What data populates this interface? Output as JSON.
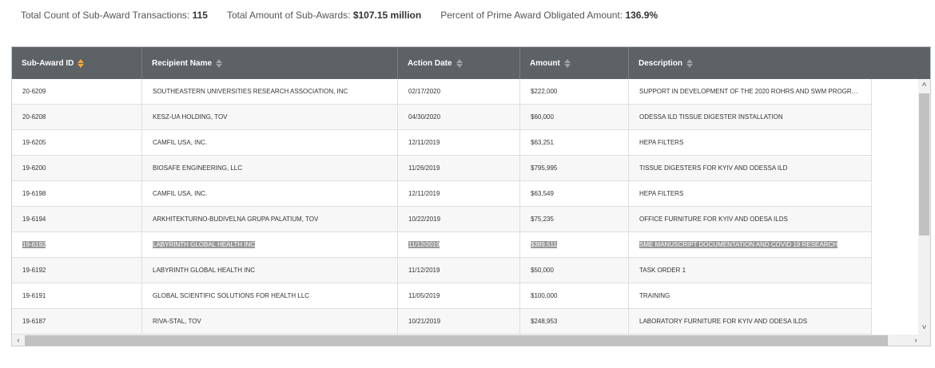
{
  "summary": {
    "count_label": "Total Count of Sub-Award Transactions:",
    "count_value": "115",
    "amount_label": "Total Amount of Sub-Awards:",
    "amount_value": "$107.15 million",
    "percent_label": "Percent of Prime Award Obligated Amount:",
    "percent_value": "136.9%"
  },
  "table": {
    "columns": [
      "Sub-Award ID",
      "Recipient Name",
      "Action Date",
      "Amount",
      "Description"
    ],
    "active_sort_column": "Sub-Award ID",
    "rows": [
      [
        "20-6209",
        "SOUTHEASTERN UNIVERSITIES RESEARCH ASSOCIATION, INC",
        "02/17/2020",
        "$222,000",
        "SUPPORT IN DEVELOPMENT OF THE 2020 ROHRS AND SWM PROGR…"
      ],
      [
        "20-6208",
        "KESZ-UA HOLDING, TOV",
        "04/30/2020",
        "$60,000",
        "ODESSA ILD TISSUE DIGESTER INSTALLATION"
      ],
      [
        "19-6205",
        "CAMFIL USA, INC.",
        "12/11/2019",
        "$63,251",
        "HEPA FILTERS"
      ],
      [
        "19-6200",
        "BIOSAFE ENGINEERING, LLC",
        "11/26/2019",
        "$795,995",
        "TISSUE DIGESTERS FOR KYIV AND ODESSA ILD"
      ],
      [
        "19-6198",
        "CAMFIL USA, INC.",
        "12/11/2019",
        "$63,549",
        "HEPA FILTERS"
      ],
      [
        "19-6194",
        "ARKHITEKTURNO-BUDIVELNA GRUPA PALATIUM, TOV",
        "10/22/2019",
        "$75,235",
        "OFFICE FURNITURE FOR KYIV AND ODESA ILDS"
      ],
      [
        "19-6192",
        "LABYRINTH GLOBAL HEALTH INC",
        "11/12/2019",
        "$389,511",
        "SME MANUSCRIPT DOCUMENTATION AND COVID 19 RESEARCH"
      ],
      [
        "19-6192",
        "LABYRINTH GLOBAL HEALTH INC",
        "11/12/2019",
        "$50,000",
        "TASK ORDER 1"
      ],
      [
        "19-6191",
        "GLOBAL SCIENTIFIC SOLUTIONS FOR HEALTH LLC",
        "11/05/2019",
        "$100,000",
        "TRAINING"
      ],
      [
        "19-6187",
        "RIVA-STAL, TOV",
        "10/21/2019",
        "$248,953",
        "LABORATORY FURNITURE FOR KYIV AND ODESA ILDS"
      ]
    ],
    "selected_row_index": 6
  },
  "icons": {
    "sort": "sort-icon",
    "scroll_up": "chevron-up-icon",
    "scroll_down": "chevron-down-icon",
    "scroll_left": "chevron-left-icon",
    "scroll_right": "chevron-right-icon"
  },
  "colors": {
    "header_bg": "#5d6266",
    "sort_active": "#f0a830",
    "selection_bg": "#999999"
  }
}
